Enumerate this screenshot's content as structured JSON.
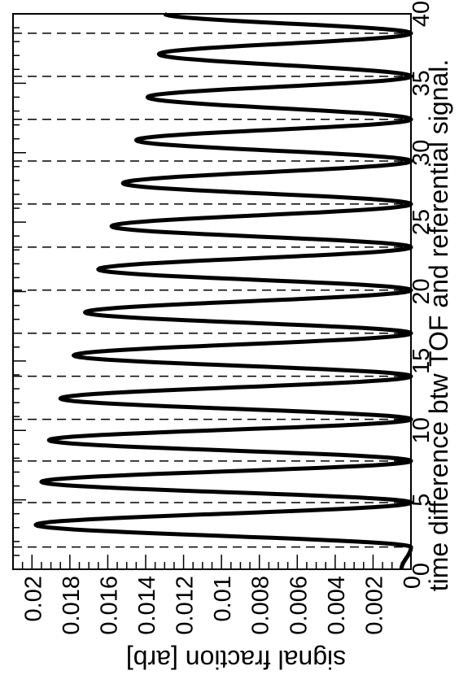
{
  "chart_data": {
    "type": "line",
    "orientation": "rotated-90-clockwise",
    "xlabel": "time difference btw TOF and referential signal.",
    "ylabel": "signal fraction [arb]",
    "xlim": [
      0,
      40
    ],
    "ylim": [
      0,
      0.021
    ],
    "x_ticks": [
      "0",
      "5",
      "10",
      "15",
      "20",
      "25",
      "30",
      "35",
      "40"
    ],
    "y_ticks": [
      "0",
      "0.002",
      "0.004",
      "0.006",
      "0.008",
      "0.01",
      "0.012",
      "0.014",
      "0.016",
      "0.018",
      "0.02"
    ],
    "grid": "dashed-vertical-lines-at-minima",
    "dashed_lines_x": [
      1.6,
      4.8,
      7.8,
      10.8,
      13.9,
      17.0,
      20.1,
      23.2,
      26.3,
      29.4,
      32.4,
      35.5,
      38.6
    ],
    "peaks": [
      {
        "x": 3.2,
        "y": 0.0198
      },
      {
        "x": 6.3,
        "y": 0.0195
      },
      {
        "x": 9.3,
        "y": 0.0191
      },
      {
        "x": 12.3,
        "y": 0.0185
      },
      {
        "x": 15.4,
        "y": 0.0178
      },
      {
        "x": 18.5,
        "y": 0.0172
      },
      {
        "x": 21.6,
        "y": 0.0165
      },
      {
        "x": 24.7,
        "y": 0.0158
      },
      {
        "x": 27.8,
        "y": 0.0152
      },
      {
        "x": 30.9,
        "y": 0.0145
      },
      {
        "x": 34.0,
        "y": 0.0139
      },
      {
        "x": 37.1,
        "y": 0.0133
      }
    ],
    "end_value": {
      "x": 40.0,
      "y": 0.013
    },
    "series": [
      {
        "period": 3.09,
        "first_minimum": 1.6,
        "minimum_value": 0.0
      }
    ]
  }
}
